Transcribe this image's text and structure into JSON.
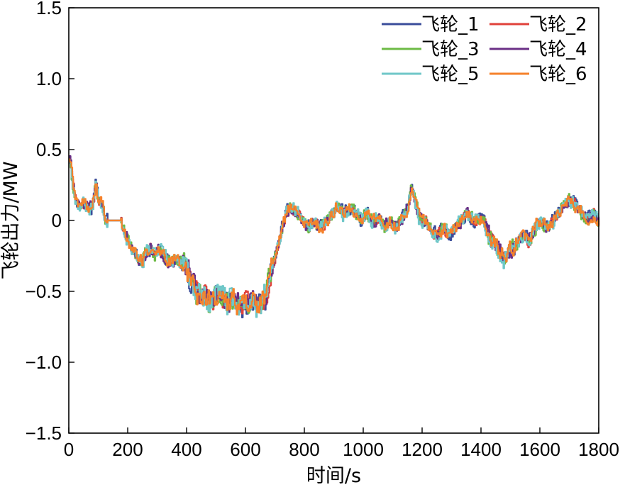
{
  "chart_data": {
    "type": "line",
    "title": "",
    "xlabel": "时间/s",
    "ylabel": "飞轮出力/MW",
    "xlim": [
      0,
      1800
    ],
    "ylim": [
      -1.5,
      1.5
    ],
    "xticks": [
      0,
      200,
      400,
      600,
      800,
      1000,
      1200,
      1400,
      1600,
      1800
    ],
    "yticks": [
      -1.5,
      -1.0,
      -0.5,
      0,
      0.5,
      1.0,
      1.5
    ],
    "ytick_labels": [
      "−1.5",
      "−1.0",
      "−0.5",
      "0",
      "0.5",
      "1.0",
      "1.5"
    ],
    "xtick_labels": [
      "0",
      "200",
      "400",
      "600",
      "800",
      "1000",
      "1200",
      "1400",
      "1600",
      "1800"
    ],
    "grid": false,
    "legend_position": "top-right",
    "legend_columns": 2,
    "base_profile": {
      "x": [
        0,
        5,
        10,
        20,
        30,
        45,
        60,
        75,
        85,
        90,
        95,
        100,
        110,
        120,
        130,
        140,
        150,
        160,
        175,
        180,
        190,
        200,
        215,
        230,
        245,
        260,
        275,
        290,
        305,
        320,
        340,
        360,
        380,
        400,
        420,
        440,
        460,
        480,
        500,
        520,
        540,
        560,
        580,
        600,
        620,
        640,
        660,
        670,
        680,
        690,
        700,
        710,
        720,
        735,
        750,
        770,
        790,
        810,
        830,
        850,
        870,
        890,
        910,
        930,
        950,
        970,
        990,
        1010,
        1030,
        1050,
        1070,
        1090,
        1110,
        1130,
        1150,
        1160,
        1170,
        1190,
        1210,
        1230,
        1250,
        1270,
        1290,
        1310,
        1330,
        1350,
        1370,
        1390,
        1410,
        1420,
        1440,
        1460,
        1480,
        1500,
        1520,
        1540,
        1560,
        1580,
        1600,
        1620,
        1640,
        1660,
        1680,
        1700,
        1720,
        1740,
        1760,
        1780,
        1800
      ],
      "y": [
        0.45,
        0.4,
        0.25,
        0.15,
        0.1,
        0.12,
        0.1,
        0.08,
        0.2,
        0.3,
        0.15,
        0.12,
        0.14,
        0.0,
        0.0,
        0.0,
        0.0,
        0.0,
        0.0,
        -0.05,
        -0.1,
        -0.15,
        -0.2,
        -0.25,
        -0.3,
        -0.22,
        -0.2,
        -0.25,
        -0.2,
        -0.25,
        -0.3,
        -0.28,
        -0.3,
        -0.35,
        -0.45,
        -0.55,
        -0.5,
        -0.6,
        -0.5,
        -0.55,
        -0.6,
        -0.55,
        -0.6,
        -0.58,
        -0.55,
        -0.6,
        -0.55,
        -0.5,
        -0.4,
        -0.3,
        -0.25,
        -0.15,
        -0.05,
        0.05,
        0.1,
        0.05,
        0.0,
        -0.05,
        0.0,
        -0.05,
        -0.03,
        0.05,
        0.1,
        0.05,
        0.1,
        0.05,
        0.0,
        0.05,
        0.0,
        0.02,
        -0.05,
        0.0,
        -0.05,
        0.02,
        0.1,
        0.25,
        0.15,
        0.0,
        0.0,
        -0.08,
        -0.1,
        -0.05,
        -0.1,
        -0.05,
        0.0,
        0.05,
        0.0,
        0.02,
        0.0,
        -0.1,
        -0.15,
        -0.2,
        -0.3,
        -0.2,
        -0.15,
        -0.1,
        -0.15,
        -0.05,
        0.0,
        -0.05,
        0.0,
        0.05,
        0.1,
        0.15,
        0.1,
        0.05,
        0.0,
        0.05,
        -0.02
      ],
      "flat_ranges": [
        [
          130,
          175
        ]
      ]
    },
    "series": [
      {
        "name": "飞轮_1",
        "color": "#3a4d9a",
        "seed": 11,
        "amp": 0.07
      },
      {
        "name": "飞轮_2",
        "color": "#e0413a",
        "seed": 23,
        "amp": 0.06
      },
      {
        "name": "飞轮_3",
        "color": "#6dba45",
        "seed": 37,
        "amp": 0.07
      },
      {
        "name": "飞轮_4",
        "color": "#6a2f86",
        "seed": 51,
        "amp": 0.065
      },
      {
        "name": "飞轮_5",
        "color": "#6fc7c8",
        "seed": 67,
        "amp": 0.08
      },
      {
        "name": "飞轮_6",
        "color": "#f5822b",
        "seed": 89,
        "amp": 0.07
      }
    ]
  }
}
